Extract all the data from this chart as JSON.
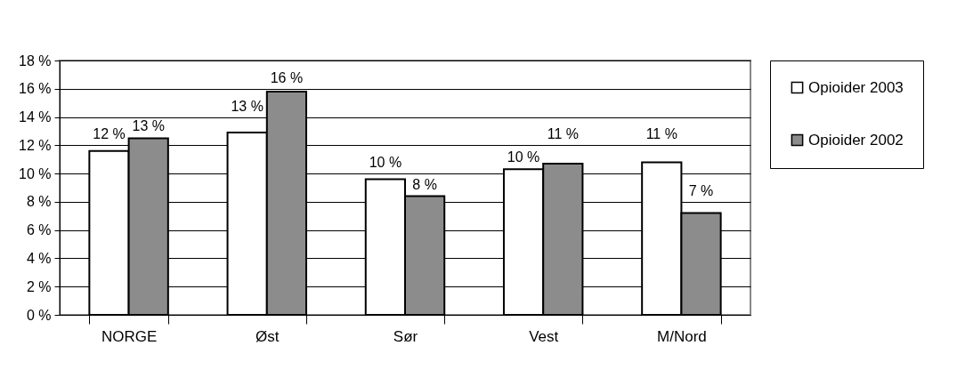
{
  "chart_data": {
    "type": "bar",
    "categories": [
      "NORGE",
      "Øst",
      "Sør",
      "Vest",
      "M/Nord"
    ],
    "series": [
      {
        "name": "Opioider 2003",
        "color": "#ffffff",
        "values": [
          11.6,
          12.9,
          9.6,
          10.3,
          10.8
        ],
        "value_labels": [
          "12 %",
          "13 %",
          "10 %",
          "10 %",
          "11 %"
        ]
      },
      {
        "name": "Opioider 2002",
        "color": "#8c8c8c",
        "values": [
          12.5,
          15.8,
          8.4,
          10.7,
          7.2
        ],
        "value_labels": [
          "13 %",
          "16 %",
          "8 %",
          "11 %",
          "7 %"
        ]
      }
    ],
    "ylim": [
      0,
      18
    ],
    "yticks": [
      {
        "value": 0,
        "label": "0 %"
      },
      {
        "value": 2,
        "label": "2 %"
      },
      {
        "value": 4,
        "label": "4 %"
      },
      {
        "value": 6,
        "label": "6 %"
      },
      {
        "value": 8,
        "label": "8 %"
      },
      {
        "value": 10,
        "label": "10 %"
      },
      {
        "value": 12,
        "label": "12 %"
      },
      {
        "value": 14,
        "label": "14 %"
      },
      {
        "value": 16,
        "label": "16 %"
      },
      {
        "value": 18,
        "label": "18 %"
      }
    ],
    "grid": "y",
    "legend": "right"
  }
}
